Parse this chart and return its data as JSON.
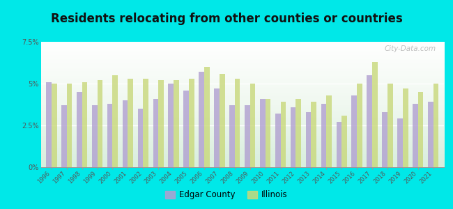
{
  "title": "Residents relocating from other counties or countries",
  "years": [
    1996,
    1997,
    1998,
    1999,
    2000,
    2001,
    2002,
    2003,
    2004,
    2005,
    2006,
    2007,
    2008,
    2009,
    2010,
    2011,
    2012,
    2013,
    2014,
    2015,
    2016,
    2017,
    2018,
    2019,
    2020,
    2021
  ],
  "edgar_county": [
    5.1,
    3.7,
    4.5,
    3.7,
    3.8,
    4.0,
    3.5,
    4.1,
    5.0,
    4.6,
    5.7,
    4.7,
    3.7,
    3.7,
    4.1,
    3.2,
    3.6,
    3.3,
    3.8,
    2.7,
    4.3,
    5.5,
    3.3,
    2.9,
    3.8,
    3.9
  ],
  "illinois": [
    5.0,
    5.0,
    5.1,
    5.2,
    5.5,
    5.3,
    5.3,
    5.2,
    5.2,
    5.3,
    6.0,
    5.6,
    5.3,
    5.0,
    4.1,
    3.9,
    4.1,
    3.9,
    4.3,
    3.1,
    5.0,
    6.3,
    5.0,
    4.7,
    4.5,
    5.0
  ],
  "edgar_color": "#b09fd0",
  "illinois_color": "#c8d87a",
  "background_color": "#00e8e8",
  "ylim": [
    0,
    7.5
  ],
  "yticks": [
    0,
    2.5,
    5.0,
    7.5
  ],
  "ytick_labels": [
    "0%",
    "2.5%",
    "5%",
    "7.5%"
  ],
  "title_fontsize": 12,
  "legend_edgar": "Edgar County",
  "legend_illinois": "Illinois",
  "watermark": "City-Data.com"
}
